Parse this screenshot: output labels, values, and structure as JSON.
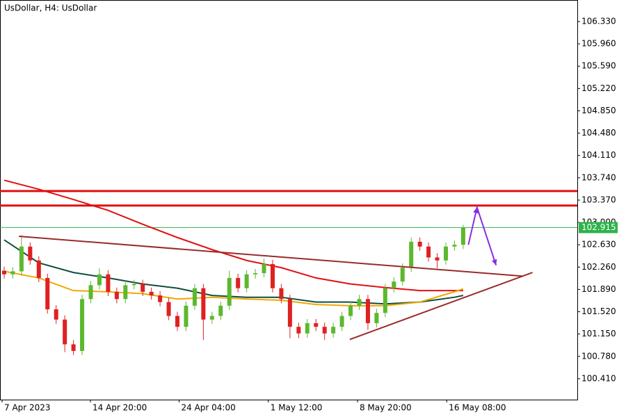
{
  "chart_data": {
    "type": "candlestick",
    "title": "UsDollar, H4:  UsDollar",
    "colors": {
      "up": "#5cb82e",
      "down": "#e02020",
      "wick": "#444444"
    },
    "xlim": [
      -0.482,
      66.18
    ],
    "ylim": [
      100.063,
      106.687
    ],
    "yticks": [
      {
        "value": 106.33,
        "label": "106.330"
      },
      {
        "value": 105.96,
        "label": "105.960"
      },
      {
        "value": 105.59,
        "label": "105.590"
      },
      {
        "value": 105.22,
        "label": "105.220"
      },
      {
        "value": 104.85,
        "label": "104.850"
      },
      {
        "value": 104.48,
        "label": "104.480"
      },
      {
        "value": 104.11,
        "label": "104.110"
      },
      {
        "value": 103.74,
        "label": "103.740"
      },
      {
        "value": 103.37,
        "label": "103.370"
      },
      {
        "value": 103.0,
        "label": "103.000"
      },
      {
        "value": 102.63,
        "label": "102.630"
      },
      {
        "value": 102.26,
        "label": "102.260"
      },
      {
        "value": 101.89,
        "label": "101.890"
      },
      {
        "value": 101.52,
        "label": "101.520"
      },
      {
        "value": 101.15,
        "label": "101.150"
      },
      {
        "value": 100.78,
        "label": "100.780"
      },
      {
        "value": 100.41,
        "label": "100.410"
      }
    ],
    "xticks": [
      {
        "value": -0.24,
        "label": "7 Apr 2023"
      },
      {
        "value": 9.96,
        "label": "14 Apr 20:00"
      },
      {
        "value": 20.2,
        "label": "24 Apr 04:00"
      },
      {
        "value": 30.5,
        "label": "1 May 12:00"
      },
      {
        "value": 40.8,
        "label": "8 May 20:00"
      },
      {
        "value": 51.1,
        "label": "16 May 08:00"
      }
    ],
    "candles": [
      [
        102.2,
        102.27,
        102.07,
        102.14
      ],
      [
        102.14,
        102.26,
        102.07,
        102.19
      ],
      [
        102.19,
        102.79,
        102.12,
        102.6
      ],
      [
        102.6,
        102.67,
        102.3,
        102.37
      ],
      [
        102.37,
        102.44,
        102.01,
        102.08
      ],
      [
        102.08,
        102.15,
        101.49,
        101.56
      ],
      [
        101.56,
        101.63,
        101.32,
        101.39
      ],
      [
        101.39,
        101.46,
        100.85,
        100.98
      ],
      [
        100.98,
        101.05,
        100.8,
        100.87
      ],
      [
        100.87,
        101.8,
        100.8,
        101.73
      ],
      [
        101.73,
        102.03,
        101.66,
        101.96
      ],
      [
        101.96,
        102.24,
        101.89,
        102.14
      ],
      [
        102.14,
        102.21,
        101.78,
        101.85
      ],
      [
        101.85,
        101.92,
        101.66,
        101.73
      ],
      [
        101.73,
        102.03,
        101.66,
        101.96
      ],
      [
        101.96,
        102.05,
        101.89,
        101.98
      ],
      [
        101.98,
        102.05,
        101.78,
        101.85
      ],
      [
        101.85,
        101.92,
        101.72,
        101.79
      ],
      [
        101.79,
        101.86,
        101.61,
        101.68
      ],
      [
        101.68,
        101.75,
        101.38,
        101.45
      ],
      [
        101.45,
        101.52,
        101.2,
        101.27
      ],
      [
        101.27,
        101.69,
        101.2,
        101.62
      ],
      [
        101.62,
        101.98,
        101.55,
        101.91
      ],
      [
        101.91,
        101.98,
        101.05,
        101.39
      ],
      [
        101.39,
        101.52,
        101.32,
        101.45
      ],
      [
        101.45,
        101.69,
        101.38,
        101.62
      ],
      [
        101.62,
        102.2,
        101.55,
        102.08
      ],
      [
        102.08,
        102.15,
        101.84,
        101.91
      ],
      [
        101.91,
        102.21,
        101.84,
        102.14
      ],
      [
        102.14,
        102.23,
        102.07,
        102.16
      ],
      [
        102.16,
        102.4,
        102.09,
        102.31
      ],
      [
        102.31,
        102.38,
        101.84,
        101.91
      ],
      [
        101.91,
        101.98,
        101.66,
        101.73
      ],
      [
        101.73,
        101.8,
        101.08,
        101.27
      ],
      [
        101.27,
        101.34,
        101.08,
        101.16
      ],
      [
        101.16,
        101.4,
        101.09,
        101.33
      ],
      [
        101.33,
        101.4,
        101.2,
        101.27
      ],
      [
        101.27,
        101.34,
        101.05,
        101.16
      ],
      [
        101.16,
        101.34,
        101.09,
        101.27
      ],
      [
        101.27,
        101.52,
        101.2,
        101.45
      ],
      [
        101.45,
        101.69,
        101.38,
        101.62
      ],
      [
        101.62,
        101.8,
        101.55,
        101.73
      ],
      [
        101.73,
        101.8,
        101.22,
        101.33
      ],
      [
        101.33,
        101.57,
        101.26,
        101.5
      ],
      [
        101.5,
        101.98,
        101.43,
        101.91
      ],
      [
        101.91,
        102.09,
        101.84,
        102.02
      ],
      [
        102.02,
        102.32,
        101.95,
        102.25
      ],
      [
        102.25,
        102.75,
        102.18,
        102.68
      ],
      [
        102.68,
        102.75,
        102.53,
        102.6
      ],
      [
        102.6,
        102.67,
        102.35,
        102.42
      ],
      [
        102.42,
        102.49,
        102.24,
        102.37
      ],
      [
        102.37,
        102.67,
        102.3,
        102.6
      ],
      [
        102.6,
        102.7,
        102.53,
        102.63
      ],
      [
        102.63,
        102.96,
        102.56,
        102.92
      ]
    ],
    "indicators": [
      {
        "color": "#e01010",
        "width": 2,
        "x": [
          0,
          4,
          8,
          12,
          16,
          20,
          24,
          28,
          32,
          36,
          40,
          44,
          48,
          52,
          53
        ],
        "values": [
          103.7,
          103.55,
          103.38,
          103.2,
          102.97,
          102.75,
          102.55,
          102.37,
          102.25,
          102.08,
          101.98,
          101.92,
          101.87,
          101.87,
          101.87
        ]
      },
      {
        "color": "#0f4d3c",
        "width": 2,
        "x": [
          0,
          4,
          8,
          12,
          16,
          20,
          24,
          28,
          32,
          36,
          40,
          44,
          48,
          52,
          53
        ],
        "values": [
          102.71,
          102.33,
          102.17,
          102.08,
          101.98,
          101.91,
          101.79,
          101.76,
          101.76,
          101.68,
          101.68,
          101.65,
          101.68,
          101.76,
          101.79
        ]
      },
      {
        "color": "#f0a800",
        "width": 2,
        "x": [
          0,
          4,
          8,
          12,
          16,
          20,
          24,
          28,
          32,
          36,
          40,
          44,
          48,
          52,
          53
        ],
        "values": [
          102.19,
          102.08,
          101.87,
          101.85,
          101.82,
          101.73,
          101.76,
          101.73,
          101.71,
          101.64,
          101.62,
          101.62,
          101.68,
          101.85,
          101.9
        ]
      }
    ],
    "trendlines": [
      {
        "color": "#9b2a2a",
        "x": [
          1.7,
          59.8
        ],
        "values": [
          102.77,
          102.11
        ]
      },
      {
        "color": "#9b2a2a",
        "x": [
          39.9,
          61.0
        ],
        "values": [
          101.06,
          102.17
        ]
      }
    ],
    "levels": [
      {
        "color": "#e01010",
        "value": 103.52
      },
      {
        "color": "#e01010",
        "value": 103.28
      }
    ],
    "arrow": {
      "color": "#8a2be2",
      "x": [
        53.6,
        54.6,
        56.8
      ],
      "values": [
        102.63,
        103.25,
        102.29
      ]
    },
    "current_price": 102.915,
    "current_price_color": "#2db34a"
  }
}
